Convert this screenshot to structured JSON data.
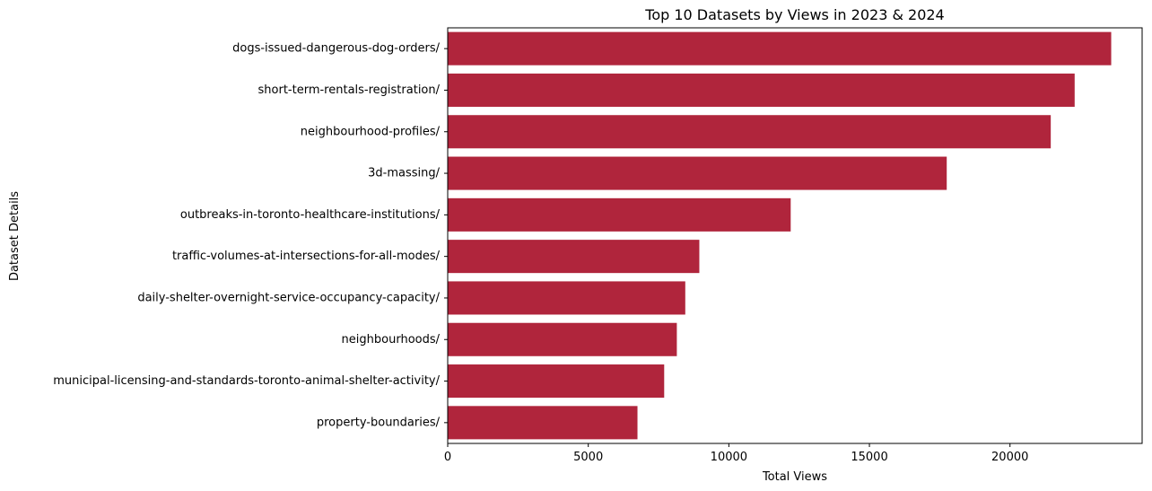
{
  "chart_data": {
    "type": "bar",
    "orientation": "horizontal",
    "title": "Top 10 Datasets by Views in 2023 & 2024",
    "xlabel": "Total Views",
    "ylabel": "Dataset Details",
    "xlim": [
      0,
      24700
    ],
    "xticks": [
      0,
      5000,
      10000,
      15000,
      20000
    ],
    "bar_color": "#b0253c",
    "grid": false,
    "legend": "none",
    "categories": [
      "dogs-issued-dangerous-dog-orders/",
      "short-term-rentals-registration/",
      "neighbourhood-profiles/",
      "3d-massing/",
      "outbreaks-in-toronto-healthcare-institutions/",
      "traffic-volumes-at-intersections-for-all-modes/",
      "daily-shelter-overnight-service-occupancy-capacity/",
      "neighbourhoods/",
      "municipal-licensing-and-standards-toronto-animal-shelter-activity/",
      "property-boundaries/"
    ],
    "values": [
      23600,
      22300,
      21450,
      17750,
      12200,
      8950,
      8450,
      8150,
      7700,
      6750
    ]
  }
}
